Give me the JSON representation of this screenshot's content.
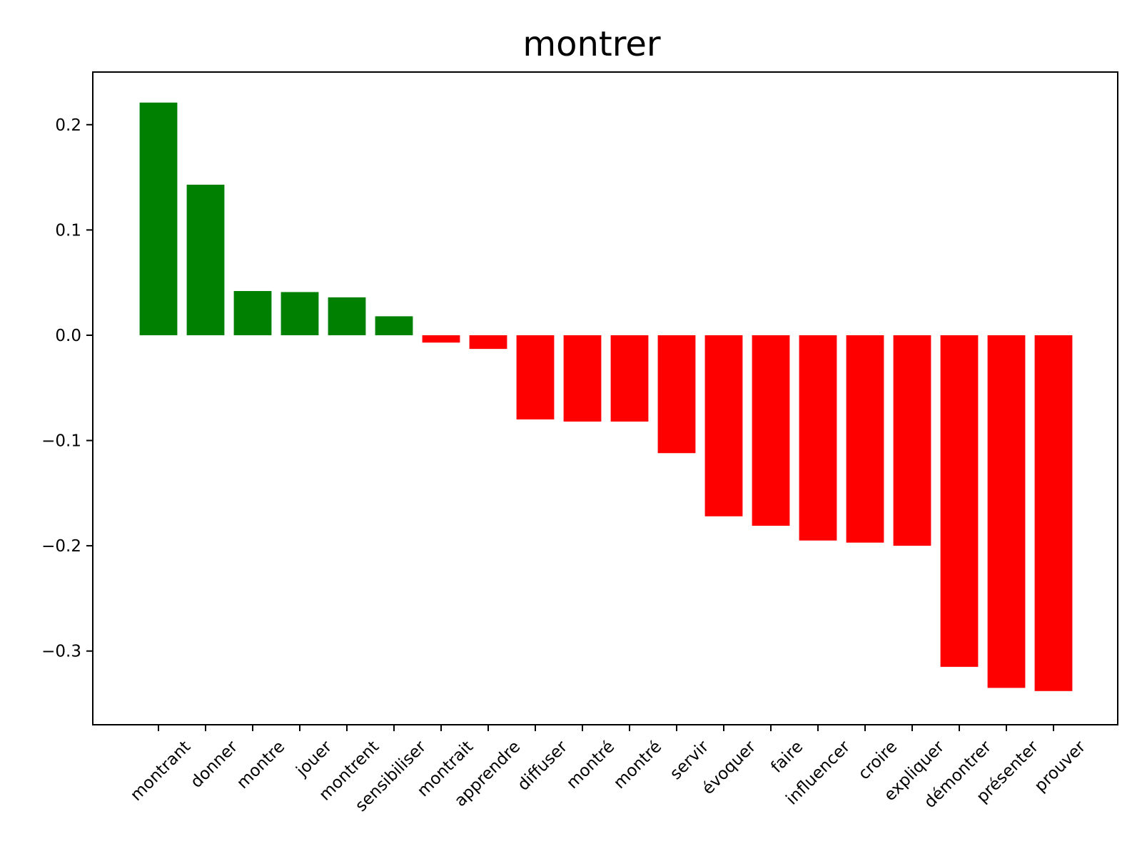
{
  "chart_data": {
    "type": "bar",
    "title": "montrer",
    "xlabel": "",
    "ylabel": "",
    "ylim": [
      -0.37,
      0.25
    ],
    "yticks": [
      -0.3,
      -0.2,
      -0.1,
      0.0,
      0.1,
      0.2
    ],
    "ytick_labels": [
      "−0.3",
      "−0.2",
      "−0.1",
      "0.0",
      "0.1",
      "0.2"
    ],
    "grid": false,
    "positive_color": "#008000",
    "negative_color": "#ff0000",
    "categories": [
      "montrant",
      "donner",
      "montre",
      "jouer",
      "montrent",
      "sensibiliser",
      "montrait",
      "apprendre",
      "diffuser",
      "montré",
      "montré",
      "servir",
      "évoquer",
      "faire",
      "influencer",
      "croire",
      "expliquer",
      "démontrer",
      "présenter",
      "prouver"
    ],
    "values": [
      0.221,
      0.143,
      0.042,
      0.041,
      0.036,
      0.018,
      -0.007,
      -0.013,
      -0.08,
      -0.082,
      -0.082,
      -0.112,
      -0.172,
      -0.181,
      -0.195,
      -0.197,
      -0.2,
      -0.315,
      -0.335,
      -0.338
    ]
  }
}
